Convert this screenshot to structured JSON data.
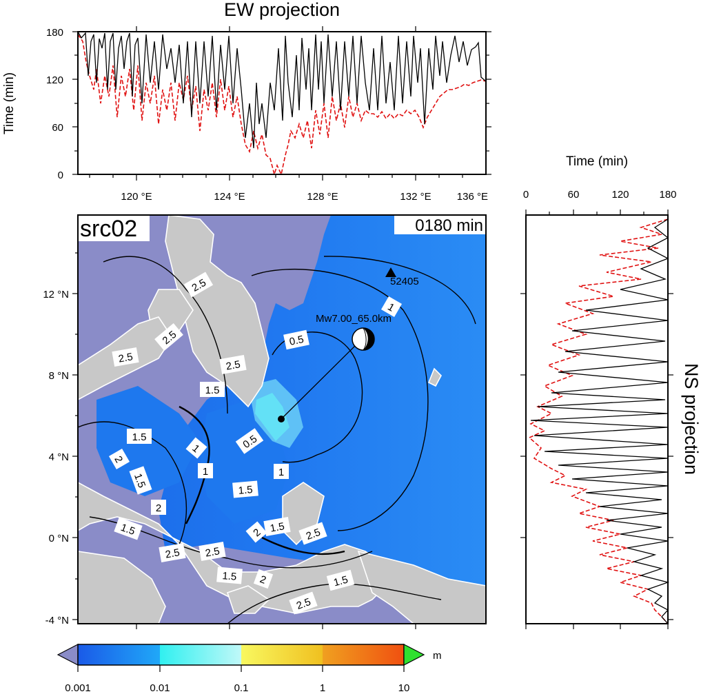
{
  "ew_panel": {
    "title": "EW projection",
    "ylabel": "Time (min)",
    "yticks": [
      "180",
      "120",
      "60",
      "0"
    ],
    "xticks": [
      "120 °E",
      "124 °E",
      "128 °E",
      "132 °E",
      "136 °E"
    ]
  },
  "ns_panel": {
    "title": "NS projection",
    "xlabel": "Time (min)",
    "xticks": [
      "0",
      "60",
      "120",
      "180"
    ]
  },
  "map": {
    "source_label": "src02",
    "time_label": "0180 min",
    "yticks": [
      "12 °N",
      "8 °N",
      "4 °N",
      "0 °N",
      "-4 °N"
    ],
    "station_label": "52405",
    "event_label": "Mw7.00_65.0km",
    "contour_labels": [
      "0.5",
      "1",
      "1.5",
      "2",
      "2.5"
    ],
    "colors": {
      "land": "#c8c8c8",
      "masked_sea": "#8a8cc8",
      "sea": "#1e80f0",
      "wave_high": "#30f0f0"
    }
  },
  "colorbar": {
    "unit": "m",
    "ticks": [
      "0.001",
      "0.01",
      "0.1",
      "1",
      "10"
    ],
    "colors": [
      "#8a8cc8",
      "#1a7cf0",
      "#30f0f0",
      "#f8f040",
      "#f04010",
      "#30e030"
    ]
  }
}
